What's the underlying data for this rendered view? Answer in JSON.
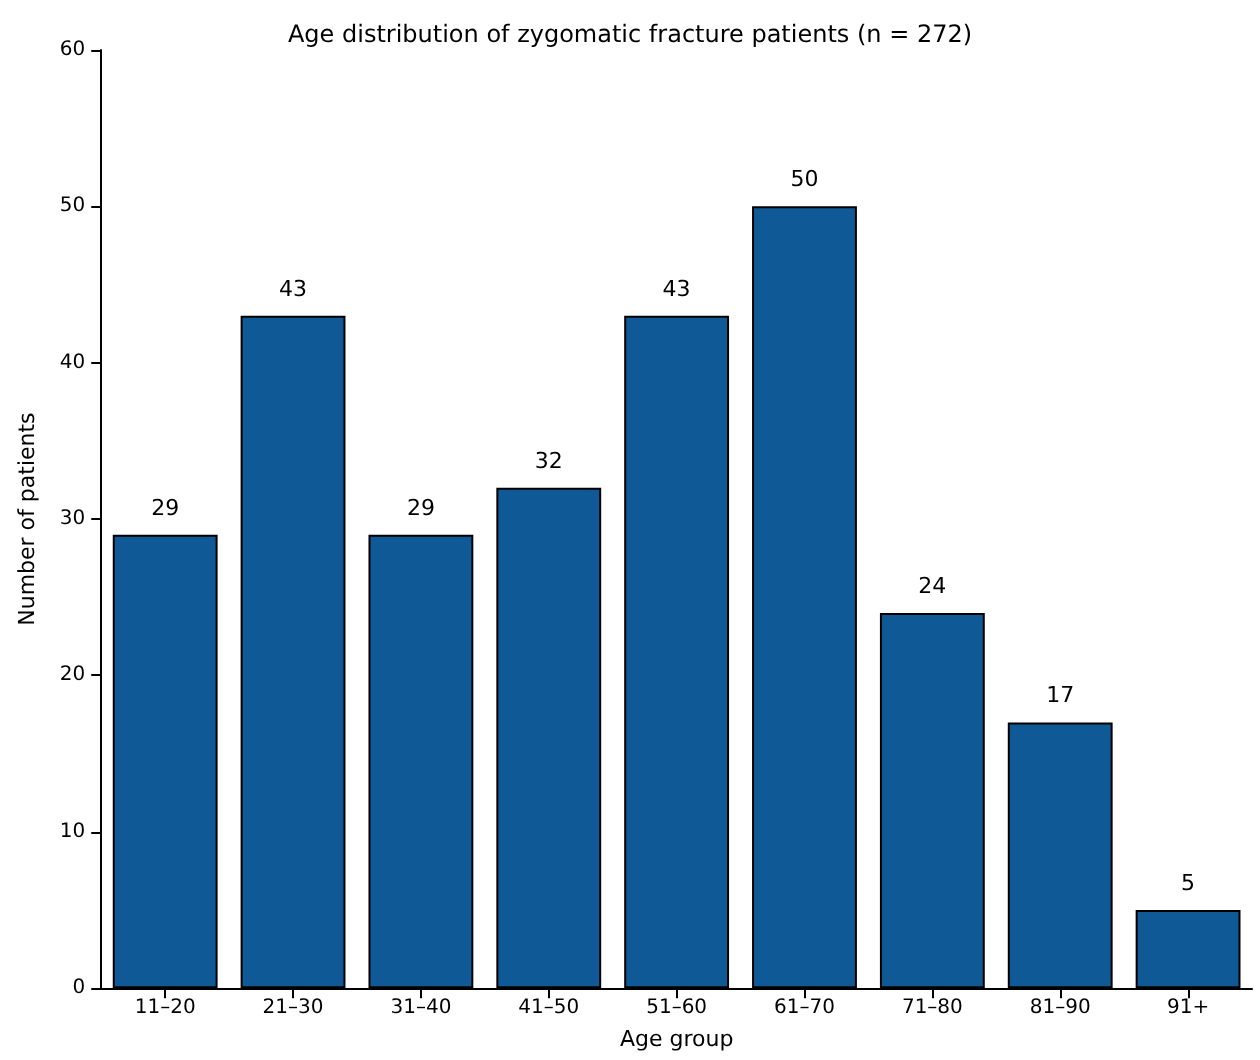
{
  "chart_data": {
    "type": "bar",
    "title": "Age distribution of zygomatic fracture patients (n = 272)",
    "xlabel": "Age group",
    "ylabel": "Number of patients",
    "categories": [
      "11–20",
      "21–30",
      "31–40",
      "41–50",
      "51–60",
      "61–70",
      "71–80",
      "81–90",
      "91+"
    ],
    "values": [
      29,
      43,
      29,
      32,
      43,
      50,
      24,
      17,
      5
    ],
    "color": "#0f5a96",
    "ylim": [
      0,
      60
    ],
    "yticks": [
      0,
      10,
      20,
      30,
      40,
      50,
      60
    ],
    "grid": false,
    "data_labels": true
  }
}
